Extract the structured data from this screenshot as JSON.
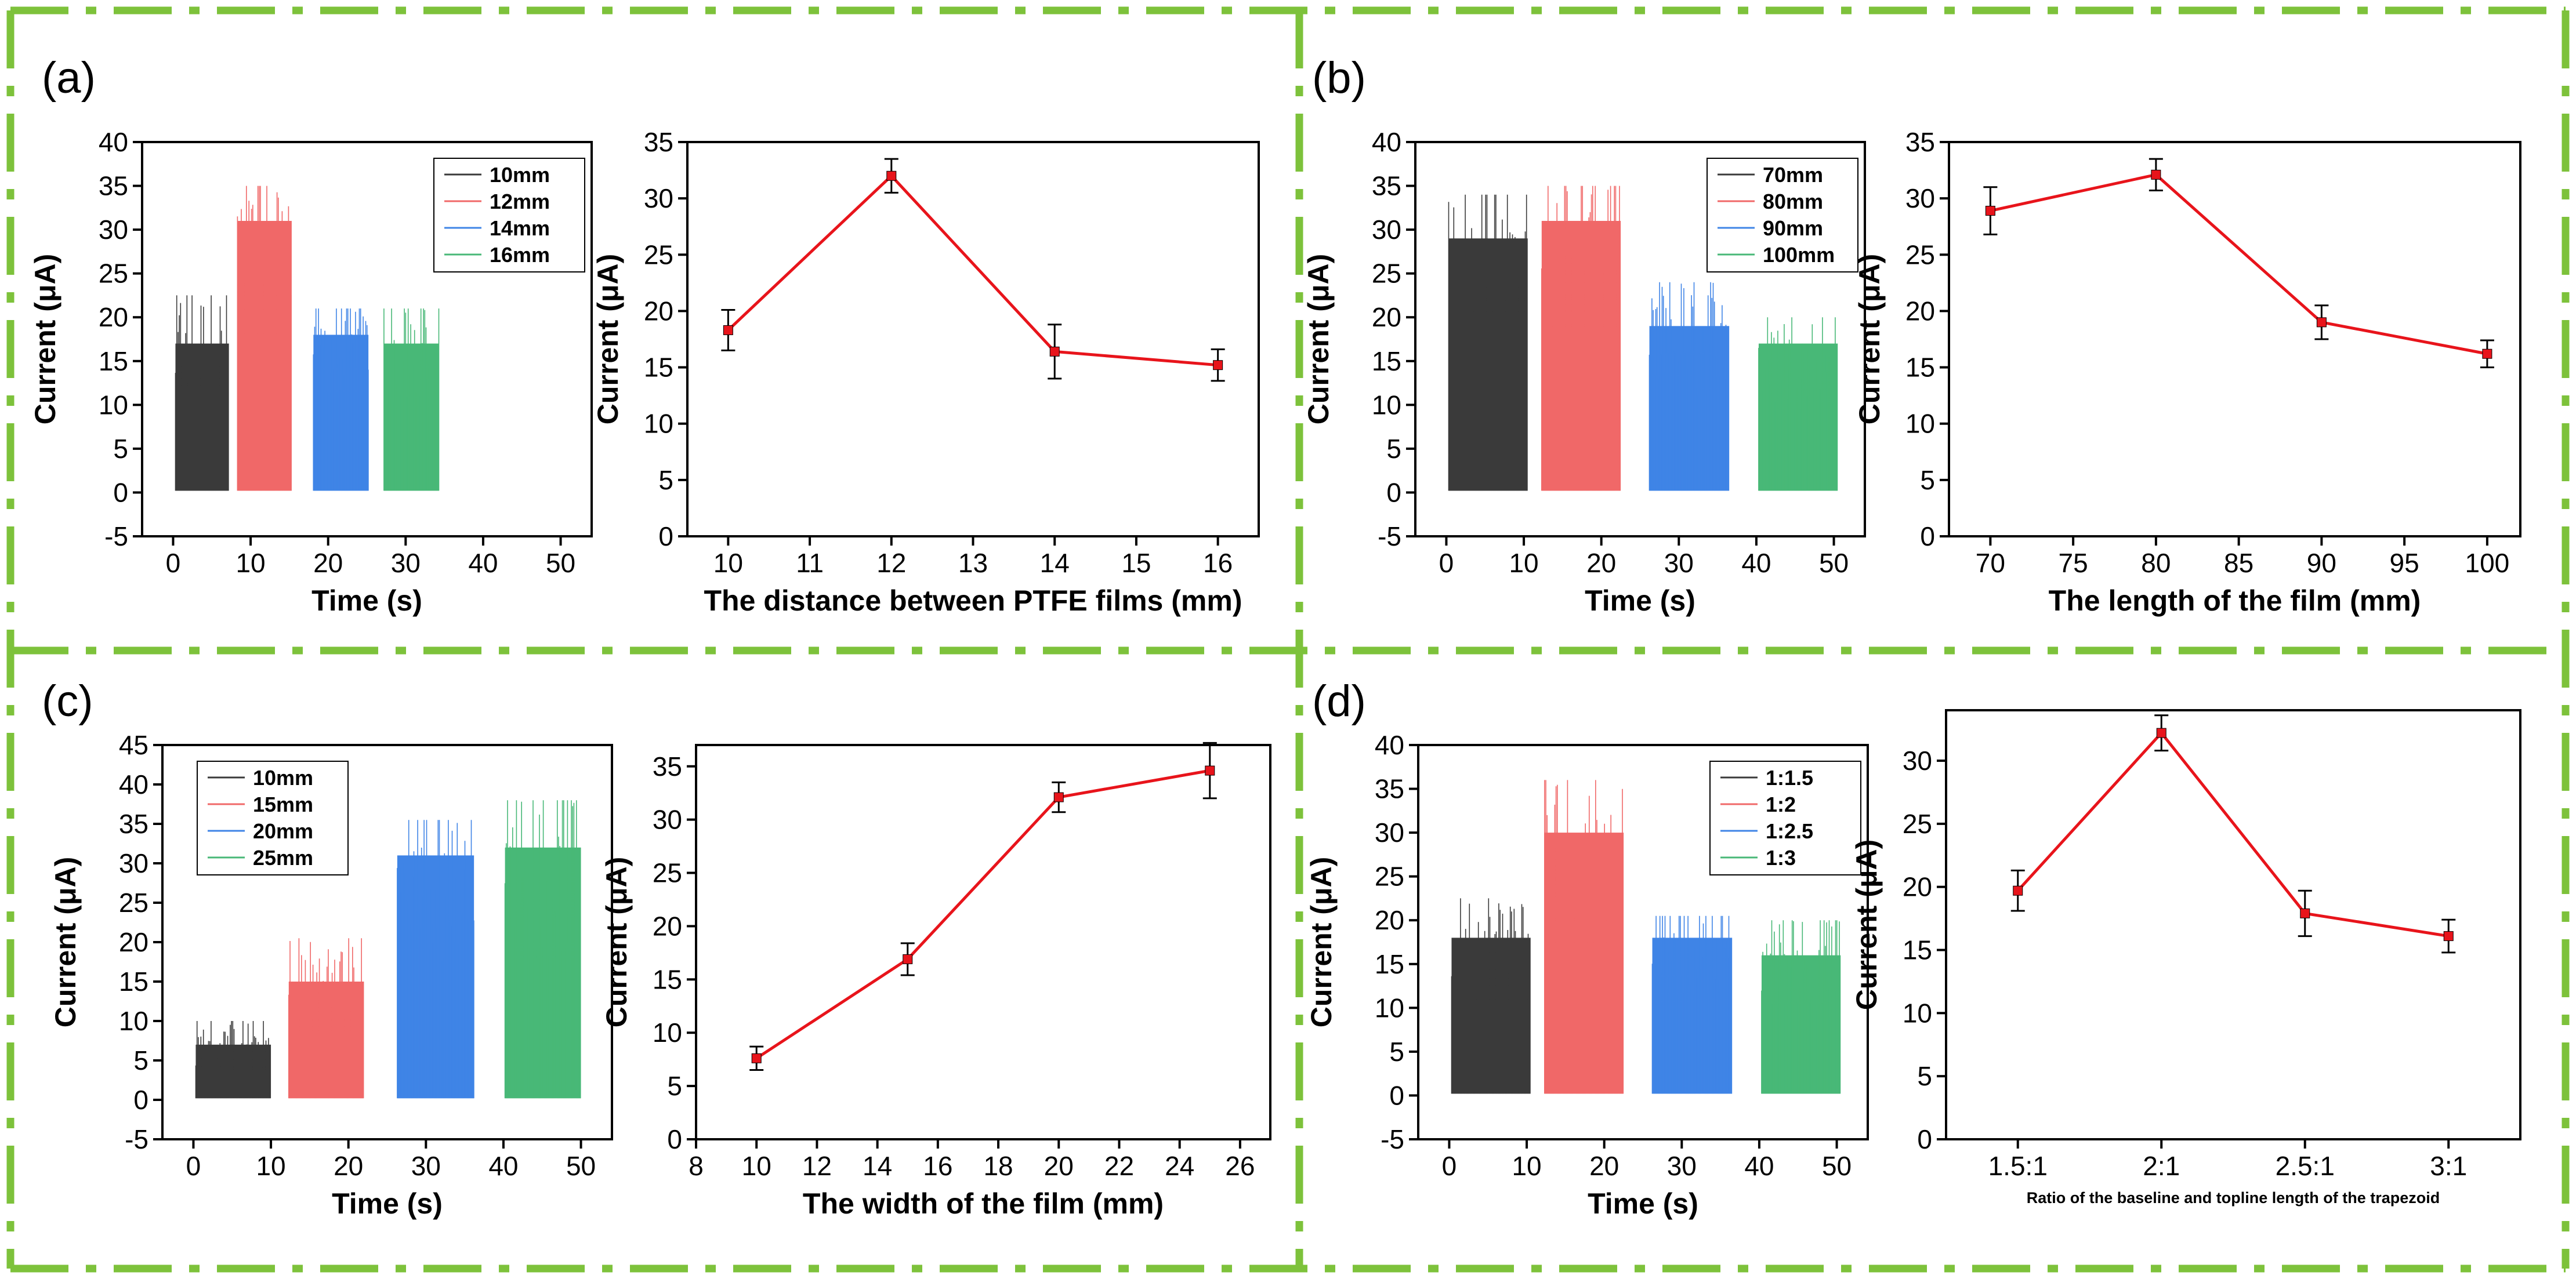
{
  "figure": {
    "border_color": "#7dc23b",
    "colors": {
      "s0": "#3a3a3a",
      "s1": "#f06868",
      "s2": "#3f84e6",
      "s3": "#48b877",
      "line": "#e8141b",
      "error": "#000000"
    }
  },
  "chart_data": [
    {
      "panel": "(a)",
      "time_plot": {
        "type": "bar",
        "xlabel": "Time (s)",
        "ylabel": "Current (μA)",
        "xlim": [
          -4,
          54
        ],
        "ylim": [
          -5,
          40
        ],
        "xticks": [
          0,
          10,
          20,
          30,
          40,
          50
        ],
        "yticks": [
          -5,
          0,
          5,
          10,
          15,
          20,
          25,
          30,
          35,
          40
        ],
        "legend": [
          "10mm",
          "12mm",
          "14mm",
          "16mm"
        ],
        "legend_position": "top-right",
        "series": [
          {
            "name": "10mm",
            "x_start": 0.3,
            "x_end": 7.2,
            "level": 17,
            "max": 22.5,
            "min": 0.2
          },
          {
            "name": "12mm",
            "x_start": 8.3,
            "x_end": 15.3,
            "level": 31,
            "max": 35,
            "min": 0.2
          },
          {
            "name": "14mm",
            "x_start": 18.1,
            "x_end": 25.2,
            "level": 18,
            "max": 21,
            "min": 0.2
          },
          {
            "name": "16mm",
            "x_start": 27.2,
            "x_end": 34.3,
            "level": 17,
            "max": 21,
            "min": 0.2
          }
        ]
      },
      "summary_plot": {
        "type": "line",
        "xlabel": "The distance between PTFE films (mm)",
        "ylabel": "Current (μA)",
        "xlim": [
          9.5,
          16.5
        ],
        "ylim": [
          0,
          35
        ],
        "xticks": [
          "10",
          "11",
          "12",
          "13",
          "14",
          "15",
          "16"
        ],
        "yticks": [
          0,
          5,
          10,
          15,
          20,
          25,
          30,
          35
        ],
        "x": [
          10,
          12,
          14,
          16
        ],
        "y": [
          18.3,
          32.0,
          16.4,
          15.2
        ],
        "err": [
          1.8,
          1.5,
          2.4,
          1.4
        ]
      }
    },
    {
      "panel": "(b)",
      "time_plot": {
        "type": "bar",
        "xlabel": "Time (s)",
        "ylabel": "Current (μA)",
        "xlim": [
          -4,
          54
        ],
        "ylim": [
          -5,
          40
        ],
        "xticks": [
          0,
          10,
          20,
          30,
          40,
          50
        ],
        "yticks": [
          -5,
          0,
          5,
          10,
          15,
          20,
          25,
          30,
          35,
          40
        ],
        "legend": [
          "70mm",
          "80mm",
          "90mm",
          "100mm"
        ],
        "legend_position": "top-right",
        "series": [
          {
            "name": "70mm",
            "x_start": 0.3,
            "x_end": 10.5,
            "level": 29,
            "max": 34,
            "min": 0.2
          },
          {
            "name": "80mm",
            "x_start": 12.3,
            "x_end": 22.5,
            "level": 31,
            "max": 35,
            "min": 0.2
          },
          {
            "name": "90mm",
            "x_start": 26.2,
            "x_end": 36.5,
            "level": 19,
            "max": 24,
            "min": 0.2
          },
          {
            "name": "100mm",
            "x_start": 40.3,
            "x_end": 50.5,
            "level": 17,
            "max": 20,
            "min": 0.2
          }
        ]
      },
      "summary_plot": {
        "type": "line",
        "xlabel": "The length of the  film (mm)",
        "ylabel": "Current (μA)",
        "xlim": [
          67.5,
          102
        ],
        "ylim": [
          0,
          35
        ],
        "xticks": [
          "70",
          "75",
          "80",
          "85",
          "90",
          "95",
          "100"
        ],
        "yticks": [
          0,
          5,
          10,
          15,
          20,
          25,
          30,
          35
        ],
        "x": [
          70,
          80,
          90,
          100
        ],
        "y": [
          28.9,
          32.1,
          19.0,
          16.2
        ],
        "err": [
          2.1,
          1.4,
          1.5,
          1.2
        ]
      }
    },
    {
      "panel": "(c)",
      "time_plot": {
        "type": "bar",
        "xlabel": "Time (s)",
        "ylabel": "Current (μA)",
        "xlim": [
          -4,
          54
        ],
        "ylim": [
          -5,
          45
        ],
        "xticks": [
          0,
          10,
          20,
          30,
          40,
          50
        ],
        "yticks": [
          -5,
          0,
          5,
          10,
          15,
          20,
          25,
          30,
          35,
          40,
          45
        ],
        "legend": [
          "10mm",
          "15mm",
          "20mm",
          "25mm"
        ],
        "legend_position": "top-left",
        "series": [
          {
            "name": "10mm",
            "x_start": 0.3,
            "x_end": 10.0,
            "level": 7,
            "max": 10,
            "min": 0.2
          },
          {
            "name": "15mm",
            "x_start": 12.3,
            "x_end": 22.0,
            "level": 15,
            "max": 20.5,
            "min": 0.2
          },
          {
            "name": "20mm",
            "x_start": 26.3,
            "x_end": 36.2,
            "level": 31,
            "max": 35.5,
            "min": 0.2
          },
          {
            "name": "25mm",
            "x_start": 40.2,
            "x_end": 50.0,
            "level": 32,
            "max": 38,
            "min": 0.2
          }
        ]
      },
      "summary_plot": {
        "type": "line",
        "xlabel": "The width of the film (mm)",
        "ylabel": "Current (μA)",
        "xlim": [
          8,
          27
        ],
        "ylim": [
          0,
          37
        ],
        "xticks": [
          "8",
          "10",
          "12",
          "14",
          "16",
          "18",
          "20",
          "22",
          "24",
          "26"
        ],
        "yticks": [
          0,
          5,
          10,
          15,
          20,
          25,
          30,
          35
        ],
        "x": [
          10,
          15,
          20,
          25
        ],
        "y": [
          7.6,
          16.9,
          32.1,
          34.6
        ],
        "err": [
          1.1,
          1.5,
          1.4,
          2.6
        ]
      }
    },
    {
      "panel": "(d)",
      "time_plot": {
        "type": "bar",
        "xlabel": "Time (s)",
        "ylabel": "Current (μA)",
        "xlim": [
          -4,
          54
        ],
        "ylim": [
          -5,
          40
        ],
        "xticks": [
          0,
          10,
          20,
          30,
          40,
          50
        ],
        "yticks": [
          -5,
          0,
          5,
          10,
          15,
          20,
          25,
          30,
          35,
          40
        ],
        "legend": [
          "1:1.5",
          "1:2",
          "1:2.5",
          "1:3"
        ],
        "legend_position": "top-right",
        "series": [
          {
            "name": "1:1.5",
            "x_start": 0.3,
            "x_end": 10.5,
            "level": 18,
            "max": 22.5,
            "min": 0.2
          },
          {
            "name": "1:2",
            "x_start": 12.3,
            "x_end": 22.5,
            "level": 30,
            "max": 36,
            "min": 0.2
          },
          {
            "name": "1:2.5",
            "x_start": 26.2,
            "x_end": 36.5,
            "level": 18,
            "max": 20.5,
            "min": 0.2
          },
          {
            "name": "1:3",
            "x_start": 40.3,
            "x_end": 50.5,
            "level": 16,
            "max": 20,
            "min": 0.2
          }
        ]
      },
      "summary_plot": {
        "type": "line",
        "xlabel": "Ratio of the baseline and topline length of the trapezoid",
        "ylabel": "Current (μA)",
        "xlim": [
          0.5,
          4.5
        ],
        "ylim": [
          0,
          34
        ],
        "xticks": [
          "1.5:1",
          "2:1",
          "2.5:1",
          "3:1"
        ],
        "yticks": [
          0,
          5,
          10,
          15,
          20,
          25,
          30
        ],
        "x": [
          1,
          2,
          3,
          4
        ],
        "y": [
          19.7,
          32.2,
          17.9,
          16.1
        ],
        "err": [
          1.6,
          1.4,
          1.8,
          1.3
        ]
      }
    }
  ]
}
